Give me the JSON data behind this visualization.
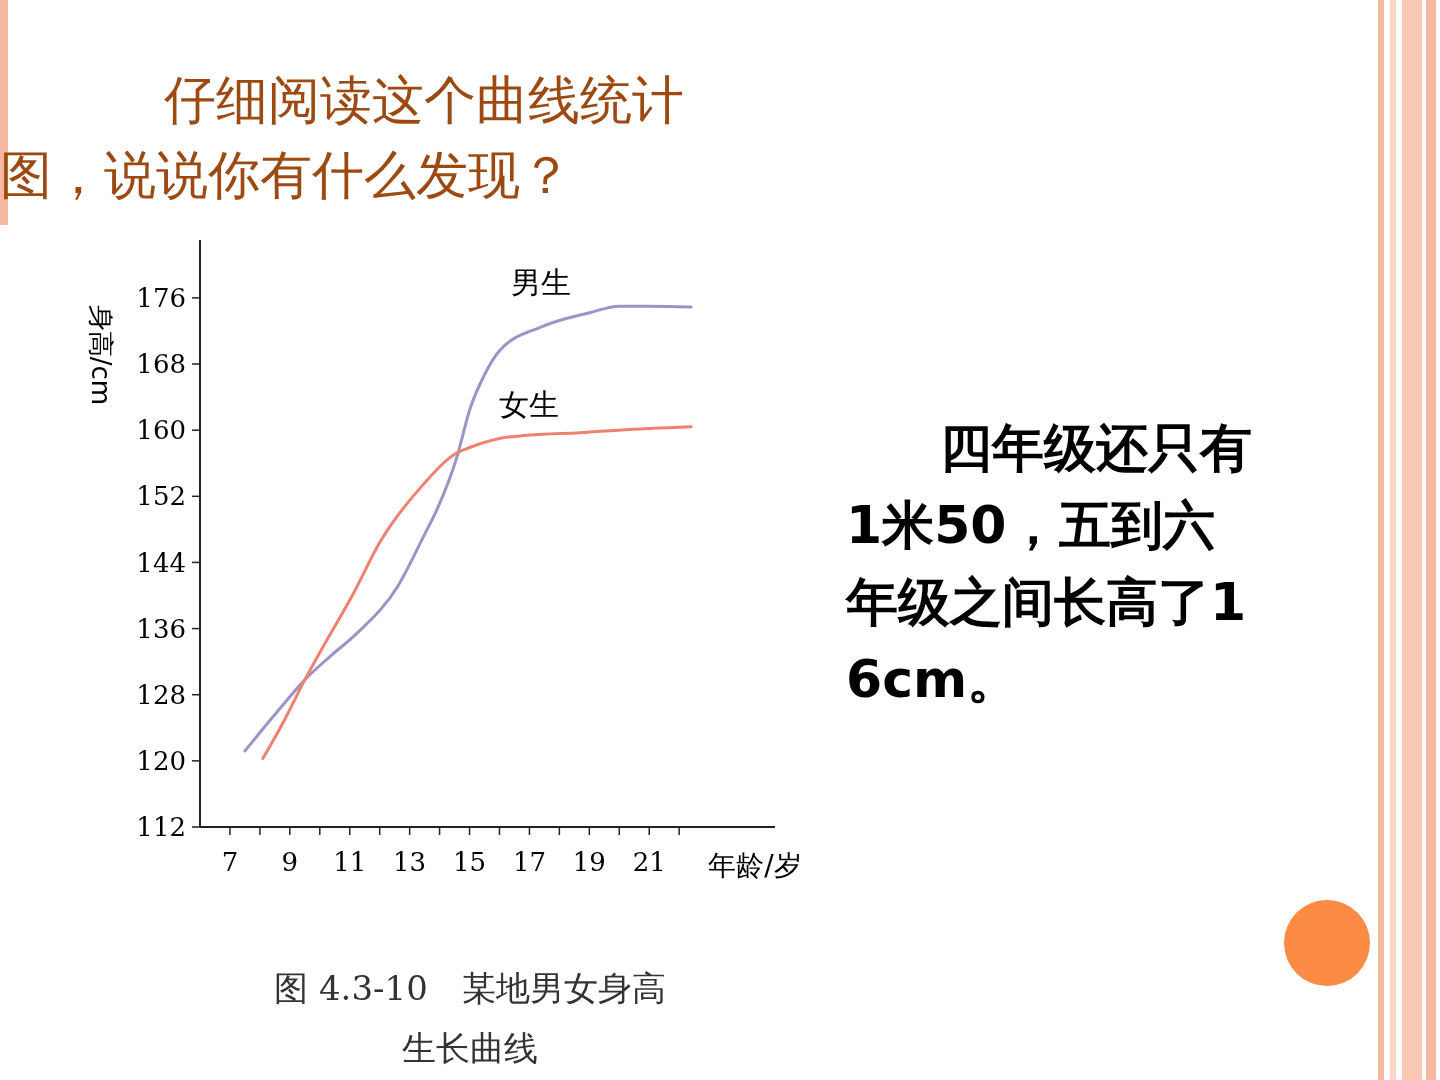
{
  "chart_data": {
    "type": "line",
    "title": "仔细阅读这个曲线统计图，说说你有什么发现？",
    "xlabel": "年龄/岁",
    "ylabel": "身高/cm",
    "annotations": [
      "四年级还只有1米50，五到六年级之间长高了16cm。",
      "图 4.3-10　某地男女身高生长曲线"
    ],
    "xlim": [
      6,
      25.2
    ],
    "xticks": [
      7,
      {
        "value": 8,
        "label": null
      },
      9,
      {
        "value": 10,
        "label": null
      },
      11,
      {
        "value": 12,
        "label": null
      },
      13,
      {
        "value": 14,
        "label": null
      },
      15,
      {
        "value": 16,
        "label": null
      },
      17,
      {
        "value": 18,
        "label": null
      },
      19,
      {
        "value": 20,
        "label": null
      },
      21,
      {
        "value": 22,
        "label": null
      }
    ],
    "ylim": [
      112,
      183
    ],
    "yticks": [
      112,
      120,
      128,
      136,
      144,
      152,
      160,
      168,
      176
    ],
    "grid": false,
    "legend": false,
    "marker": "none",
    "line_style": "solid",
    "series": [
      {
        "name": "男生",
        "color": "#9d93c6",
        "x": [
          7.5,
          8.5,
          9.5,
          10.3,
          11.2,
          12.6,
          13.5,
          13.9,
          14.6,
          15,
          15.5,
          16,
          17.4,
          19,
          20,
          21,
          22.4
        ],
        "values": [
          121.2,
          125.6,
          129.8,
          132.5,
          135.3,
          141.1,
          147.4,
          150.3,
          157,
          162.4,
          166.7,
          169.6,
          172.5,
          174.2,
          175,
          175,
          174.9
        ]
      },
      {
        "name": "女生",
        "color": "#f08070",
        "x": [
          8.1,
          8.8,
          9.5,
          10.3,
          11.1,
          12,
          13.4,
          14.6,
          15,
          16,
          17,
          18.7,
          20,
          22.4
        ],
        "values": [
          120.3,
          124.8,
          129.8,
          135,
          140.1,
          146.4,
          153.2,
          157.3,
          157.9,
          159,
          159.4,
          159.7,
          160,
          160.4
        ]
      }
    ]
  }
}
